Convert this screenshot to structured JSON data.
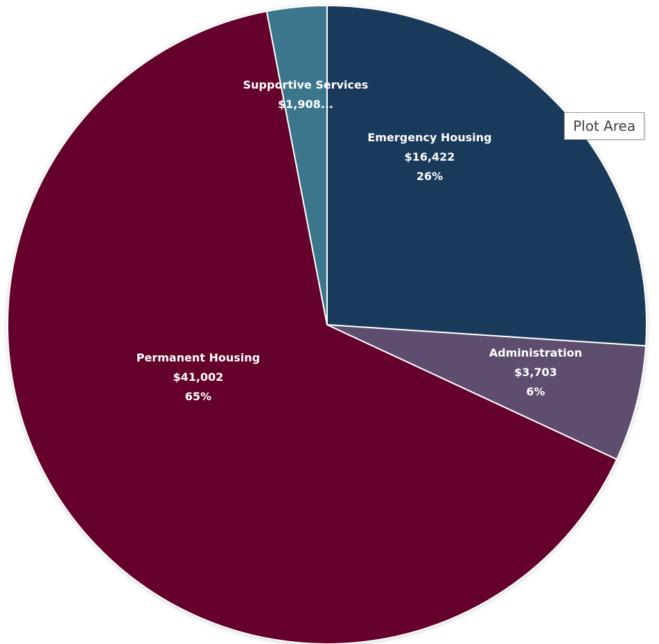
{
  "chart_data": {
    "type": "pie",
    "start_angle_deg": 0,
    "direction": "clockwise",
    "slices": [
      {
        "label": "Emergency Housing",
        "value": 16422,
        "value_text": "$16,422",
        "percent_text": "26%",
        "color": "#1a3a5c"
      },
      {
        "label": "Administration",
        "value": 3703,
        "value_text": "$3,703",
        "percent_text": "6%",
        "color": "#5e4d6e"
      },
      {
        "label": "Permanent Housing",
        "value": 41002,
        "value_text": "$41,002",
        "percent_text": "65%",
        "color": "#64002b"
      },
      {
        "label": "Supportive Services",
        "value": 1908,
        "value_text": "$1,908...",
        "percent_text": "",
        "color": "#3b768c"
      }
    ]
  },
  "tooltip": {
    "text": "Plot Area"
  }
}
